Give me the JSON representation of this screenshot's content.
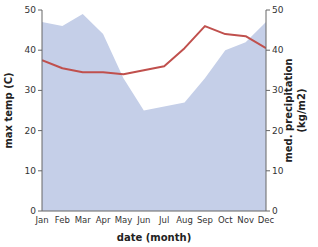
{
  "chart_data": {
    "type": "line",
    "xlabel": "date (month)",
    "ylabel": "max temp (C)",
    "y2label": "med. precipitation\n(kg/m2)",
    "categories": [
      "Jan",
      "Feb",
      "Mar",
      "Apr",
      "May",
      "Jun",
      "Jul",
      "Aug",
      "Sep",
      "Oct",
      "Nov",
      "Dec"
    ],
    "series": [
      {
        "type": "area",
        "axis": "y2",
        "color": "#c5cfe8",
        "values": [
          47,
          46,
          49,
          44,
          33,
          25,
          26,
          27,
          33,
          40,
          42,
          47
        ]
      },
      {
        "type": "line",
        "color": "#c0504d",
        "values": [
          37.5,
          35.5,
          34.5,
          34.5,
          34.0,
          35.0,
          36.0,
          40.5,
          46.0,
          44.0,
          43.5,
          40.5
        ]
      }
    ],
    "ylim": [
      0,
      50
    ],
    "yticks": [
      0,
      10,
      20,
      30,
      40,
      50
    ],
    "y2lim": [
      0,
      50
    ],
    "y2ticks": [
      0,
      10,
      20,
      30,
      40,
      50
    ]
  }
}
